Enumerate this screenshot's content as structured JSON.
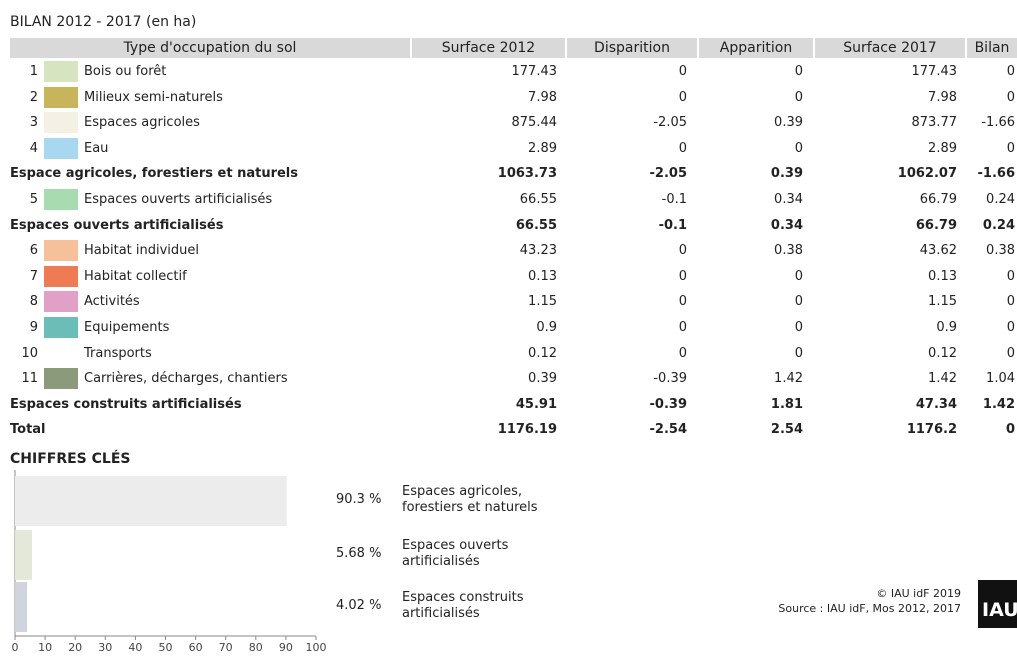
{
  "table": {
    "title": "BILAN 2012 - 2017 (en ha)",
    "columns": [
      "Type d'occupation du sol",
      "Surface 2012",
      "Disparition",
      "Apparition",
      "Surface 2017",
      "Bilan"
    ],
    "rows": [
      {
        "num": 1,
        "color": "#d7e4c0",
        "label": "Bois ou forêt",
        "values": [
          177.43,
          0,
          0,
          177.43,
          0
        ]
      },
      {
        "num": 2,
        "color": "#c8b45a",
        "label": "Milieux semi-naturels",
        "values": [
          7.98,
          0,
          0,
          7.98,
          0
        ]
      },
      {
        "num": 3,
        "color": "#f4f0e6",
        "label": "Espaces agricoles",
        "values": [
          875.44,
          -2.05,
          0.39,
          873.77,
          -1.66
        ]
      },
      {
        "num": 4,
        "color": "#a8d8f0",
        "label": "Eau",
        "values": [
          2.89,
          0,
          0,
          2.89,
          0
        ]
      },
      {
        "label": "Espace agricoles, forestiers et naturels",
        "values": [
          1063.73,
          -2.05,
          0.39,
          1062.07,
          -1.66
        ]
      },
      {
        "num": 5,
        "color": "#a8dcb0",
        "label": "Espaces ouverts artificialisés",
        "values": [
          66.55,
          -0.1,
          0.34,
          66.79,
          0.24
        ]
      },
      {
        "label": "Espaces ouverts artificialisés",
        "values": [
          66.55,
          -0.1,
          0.34,
          66.79,
          0.24
        ]
      },
      {
        "num": 6,
        "color": "#f6c09a",
        "label": "Habitat individuel",
        "values": [
          43.23,
          0,
          0.38,
          43.62,
          0.38
        ]
      },
      {
        "num": 7,
        "color": "#ef7b54",
        "label": "Habitat collectif",
        "values": [
          0.13,
          0,
          0,
          0.13,
          0
        ]
      },
      {
        "num": 8,
        "color": "#e0a0c8",
        "label": "Activités",
        "values": [
          1.15,
          0,
          0,
          1.15,
          0
        ]
      },
      {
        "num": 9,
        "color": "#6cbcb8",
        "label": "Equipements",
        "values": [
          0.9,
          0,
          0,
          0.9,
          0
        ]
      },
      {
        "num": 10,
        "color": "#ffffff",
        "label": "Transports",
        "values": [
          0.12,
          0,
          0,
          0.12,
          0
        ]
      },
      {
        "num": 11,
        "color": "#8c9a7c",
        "label": "Carrières, décharges, chantiers",
        "values": [
          0.39,
          -0.39,
          1.42,
          1.42,
          1.04
        ]
      },
      {
        "label": "Espaces construits artificialisés",
        "values": [
          45.91,
          -0.39,
          1.81,
          47.34,
          1.42
        ]
      },
      {
        "label": "Total",
        "values": [
          1176.19,
          -2.54,
          2.54,
          1176.2,
          0
        ]
      }
    ]
  },
  "chart_data": {
    "type": "bar",
    "orientation": "horizontal",
    "title": "CHIFFRES CLÉS",
    "categories": [
      "Espaces agricoles, forestiers et naturels",
      "Espaces ouverts artificialisés",
      "Espaces construits artificialisés"
    ],
    "values": [
      90.3,
      5.68,
      4.02
    ],
    "value_labels": [
      "90.3 %",
      "5.68 %",
      "4.02 %"
    ],
    "colors": [
      "#ececec",
      "#e4e8d8",
      "#d0d4dc"
    ],
    "xlim": [
      0,
      100
    ],
    "xticks": [
      0,
      10,
      20,
      30,
      40,
      50,
      60,
      70,
      80,
      90,
      100
    ]
  },
  "footer": {
    "copyright": "© IAU idF 2019",
    "source": "Source : IAU idF, Mos 2012, 2017",
    "logo": "IAU"
  }
}
